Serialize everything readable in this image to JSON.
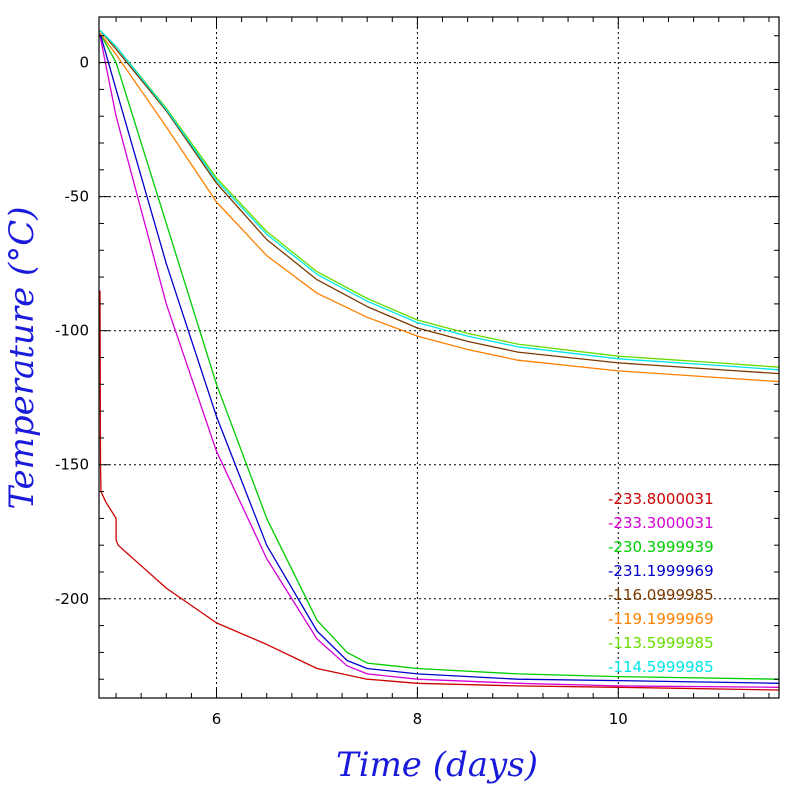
{
  "chart_data": {
    "type": "line",
    "title": "",
    "xlabel": "Time (days)",
    "ylabel": "Temperature (°C)",
    "xlim": [
      4.83,
      11.6
    ],
    "ylim": [
      -237,
      17
    ],
    "grid": true,
    "legend_placement": "bottom-right",
    "x_ticks": [
      6,
      8,
      10
    ],
    "y_ticks": [
      0,
      -50,
      -100,
      -150,
      -200
    ],
    "series": [
      {
        "name": "-233.8000031",
        "color": "#cc0000",
        "points": [
          [
            4.84,
            -85
          ],
          [
            4.845,
            -150
          ],
          [
            4.85,
            -160
          ],
          [
            4.9,
            -164
          ],
          [
            5.0,
            -170
          ],
          [
            5.0,
            -178
          ],
          [
            5.02,
            -180
          ],
          [
            5.2,
            -186
          ],
          [
            5.5,
            -196
          ],
          [
            6.0,
            -209
          ],
          [
            6.5,
            -217
          ],
          [
            7.0,
            -226
          ],
          [
            7.5,
            -230
          ],
          [
            8.0,
            -231.5
          ],
          [
            9.0,
            -232.5
          ],
          [
            10.0,
            -233
          ],
          [
            11.6,
            -234
          ]
        ]
      },
      {
        "name": "-233.3000031",
        "color": "#d400d4",
        "points": [
          [
            4.84,
            10
          ],
          [
            5.0,
            -20
          ],
          [
            5.5,
            -90
          ],
          [
            6.0,
            -145
          ],
          [
            6.5,
            -185
          ],
          [
            7.0,
            -215
          ],
          [
            7.3,
            -225
          ],
          [
            7.5,
            -228
          ],
          [
            8.0,
            -230
          ],
          [
            9.0,
            -231.5
          ],
          [
            10.0,
            -232.5
          ],
          [
            11.6,
            -233
          ]
        ]
      },
      {
        "name": "-230.3999939",
        "color": "#00cc00",
        "points": [
          [
            4.84,
            11
          ],
          [
            5.0,
            0
          ],
          [
            5.5,
            -60
          ],
          [
            6.0,
            -120
          ],
          [
            6.5,
            -170
          ],
          [
            7.0,
            -208
          ],
          [
            7.3,
            -220
          ],
          [
            7.5,
            -224
          ],
          [
            8.0,
            -226
          ],
          [
            9.0,
            -228
          ],
          [
            10.0,
            -229
          ],
          [
            11.6,
            -230
          ]
        ]
      },
      {
        "name": "-231.1999969",
        "color": "#0000cc",
        "points": [
          [
            4.84,
            11
          ],
          [
            5.0,
            -10
          ],
          [
            5.5,
            -75
          ],
          [
            6.0,
            -132
          ],
          [
            6.5,
            -180
          ],
          [
            7.0,
            -212
          ],
          [
            7.3,
            -223
          ],
          [
            7.5,
            -226
          ],
          [
            8.0,
            -228
          ],
          [
            9.0,
            -230
          ],
          [
            10.0,
            -230.5
          ],
          [
            11.6,
            -231.5
          ]
        ]
      },
      {
        "name": "-116.0999985",
        "color": "#7a3b00",
        "points": [
          [
            4.84,
            12
          ],
          [
            5.0,
            5
          ],
          [
            5.5,
            -18
          ],
          [
            6.0,
            -45
          ],
          [
            6.5,
            -66
          ],
          [
            7.0,
            -81
          ],
          [
            7.5,
            -91
          ],
          [
            8.0,
            -99
          ],
          [
            8.5,
            -104
          ],
          [
            9.0,
            -108
          ],
          [
            10.0,
            -112
          ],
          [
            11.0,
            -114.5
          ],
          [
            11.6,
            -116
          ]
        ]
      },
      {
        "name": "-119.1999969",
        "color": "#ff8000",
        "points": [
          [
            4.84,
            11
          ],
          [
            5.0,
            3
          ],
          [
            5.5,
            -24
          ],
          [
            6.0,
            -52
          ],
          [
            6.5,
            -72
          ],
          [
            7.0,
            -86
          ],
          [
            7.5,
            -95
          ],
          [
            8.0,
            -102
          ],
          [
            8.5,
            -107
          ],
          [
            9.0,
            -111
          ],
          [
            10.0,
            -115
          ],
          [
            11.0,
            -117.5
          ],
          [
            11.6,
            -119
          ]
        ]
      },
      {
        "name": "-113.5999985",
        "color": "#66dd00",
        "points": [
          [
            4.84,
            12
          ],
          [
            5.0,
            6
          ],
          [
            5.5,
            -17
          ],
          [
            6.0,
            -43
          ],
          [
            6.5,
            -63
          ],
          [
            7.0,
            -78
          ],
          [
            7.5,
            -88
          ],
          [
            8.0,
            -96
          ],
          [
            8.5,
            -101
          ],
          [
            9.0,
            -105
          ],
          [
            10.0,
            -109.5
          ],
          [
            11.0,
            -112
          ],
          [
            11.6,
            -113.6
          ]
        ]
      },
      {
        "name": "-114.5999985",
        "color": "#00e5e5",
        "points": [
          [
            4.84,
            12
          ],
          [
            5.0,
            6
          ],
          [
            5.5,
            -17.5
          ],
          [
            6.0,
            -44
          ],
          [
            6.5,
            -64
          ],
          [
            7.0,
            -79
          ],
          [
            7.5,
            -89
          ],
          [
            8.0,
            -97
          ],
          [
            8.5,
            -102
          ],
          [
            9.0,
            -106
          ],
          [
            10.0,
            -110.5
          ],
          [
            11.0,
            -113
          ],
          [
            11.6,
            -114.6
          ]
        ]
      }
    ]
  }
}
